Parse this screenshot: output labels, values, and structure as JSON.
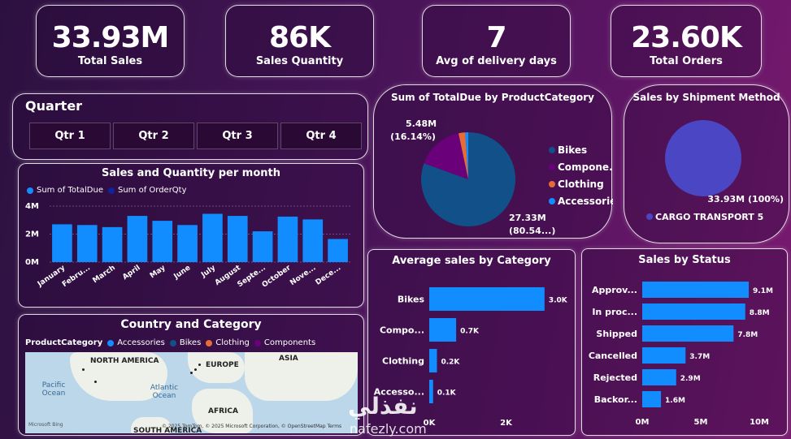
{
  "kpis": [
    {
      "value": "33.93M",
      "label": "Total Sales"
    },
    {
      "value": "86K",
      "label": "Sales Quantity"
    },
    {
      "value": "7",
      "label": "Avg of delivery days"
    },
    {
      "value": "23.60K",
      "label": "Total Orders"
    }
  ],
  "quarter": {
    "title": "Quarter",
    "buttons": [
      "Qtr 1",
      "Qtr 2",
      "Qtr 3",
      "Qtr 4"
    ]
  },
  "watermark": {
    "arabic": "نفذلي",
    "latin": "nafezly.com"
  },
  "colors": {
    "bar": "#118dff",
    "bikes": "#12508a",
    "components": "#6b007b",
    "clothing": "#e66c37",
    "accessories": "#118dff",
    "cargo": "#4b46c4"
  },
  "chart_data": [
    {
      "id": "monthly",
      "type": "bar",
      "title": "Sales and Quantity per month",
      "legend": [
        "Sum of TotalDue",
        "Sum of OrderQty"
      ],
      "legend_colors": [
        "#118dff",
        "#12239e"
      ],
      "categories": [
        "January",
        "Febru...",
        "March",
        "April",
        "May",
        "June",
        "July",
        "August",
        "Septe...",
        "October",
        "Nove...",
        "Dece..."
      ],
      "series": [
        {
          "name": "Sum of TotalDue",
          "values": [
            2.7,
            2.65,
            2.5,
            3.3,
            2.95,
            2.65,
            3.45,
            3.3,
            2.2,
            3.25,
            3.05,
            1.65
          ]
        }
      ],
      "yticks": [
        "4M",
        "2M",
        "0M"
      ],
      "ylim": [
        0,
        4
      ],
      "grid": true
    },
    {
      "id": "pie_category",
      "type": "pie",
      "title": "Sum of TotalDue by ProductCategory",
      "categories": [
        "Bikes",
        "Compone...",
        "Clothing",
        "Accessories"
      ],
      "values": [
        80.54,
        16.14,
        2.3,
        1.02
      ],
      "labels": [
        {
          "value": "27.33M",
          "pct": "(80.54...)"
        },
        {
          "value": "5.48M",
          "pct": "(16.14%)"
        }
      ],
      "legend_position": "right"
    },
    {
      "id": "pie_shipment",
      "type": "pie",
      "title": "Sales by Shipment Method",
      "categories": [
        "CARGO TRANSPORT 5"
      ],
      "values": [
        100
      ],
      "label": "33.93M (100%)"
    },
    {
      "id": "avg_category",
      "type": "bar",
      "orientation": "horizontal",
      "title": "Average sales by Category",
      "categories": [
        "Bikes",
        "Compo...",
        "Clothing",
        "Accesso..."
      ],
      "values": [
        3.0,
        0.7,
        0.2,
        0.1
      ],
      "value_labels": [
        "3.0K",
        "0.7K",
        "0.2K",
        "0.1K"
      ],
      "xticks": [
        "0K",
        "2K"
      ],
      "xlim": [
        0,
        3.3
      ]
    },
    {
      "id": "status",
      "type": "bar",
      "orientation": "horizontal",
      "title": "Sales by Status",
      "categories": [
        "Approv...",
        "In proc...",
        "Shipped",
        "Cancelled",
        "Rejected",
        "Backor..."
      ],
      "values": [
        9.1,
        8.8,
        7.8,
        3.7,
        2.9,
        1.6
      ],
      "value_labels": [
        "9.1M",
        "8.8M",
        "7.8M",
        "3.7M",
        "2.9M",
        "1.6M"
      ],
      "xticks": [
        "0M",
        "5M",
        "10M"
      ],
      "xlim": [
        0,
        10
      ]
    }
  ],
  "map": {
    "title": "Country and Category",
    "legend_title": "ProductCategory",
    "legend": [
      "Accessories",
      "Bikes",
      "Clothing",
      "Components"
    ],
    "legend_colors": [
      "#118dff",
      "#12508a",
      "#e66c37",
      "#6b007b"
    ],
    "labels": [
      "NORTH AMERICA",
      "EUROPE",
      "ASIA",
      "AFRICA",
      "SOUTH AMERICA"
    ],
    "oceans": [
      "Pacific Ocean",
      "Atlantic Ocean"
    ],
    "attribution": "© 2025 TomTom, © 2025 Microsoft Corporation, © OpenStreetMap  Terms",
    "provider": "Microsoft Bing"
  }
}
